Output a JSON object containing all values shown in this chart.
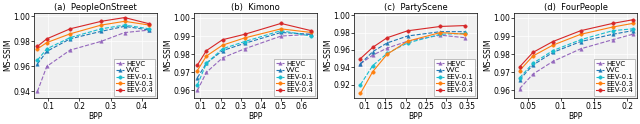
{
  "subplots": [
    {
      "title": "(a)  PeopleOnStreet",
      "xlabel": "BPP",
      "ylabel": "MS-SSIM",
      "xlim": [
        0.055,
        0.45
      ],
      "ylim": [
        0.935,
        1.003
      ],
      "yticks": [
        0.94,
        0.96,
        0.98,
        1.0
      ],
      "xticks": [
        0.1,
        0.2,
        0.3,
        0.4
      ],
      "series": [
        {
          "label": "HEVC",
          "color": "#9467bd",
          "linestyle": "--",
          "marker": "^",
          "mfc": "#9467bd",
          "x": [
            0.065,
            0.095,
            0.17,
            0.27,
            0.345,
            0.425
          ],
          "y": [
            0.94,
            0.96,
            0.973,
            0.98,
            0.987,
            0.989
          ]
        },
        {
          "label": "VVC",
          "color": "#1f77b4",
          "linestyle": "--",
          "marker": "^",
          "mfc": "#1f77b4",
          "x": [
            0.065,
            0.095,
            0.17,
            0.27,
            0.345,
            0.425
          ],
          "y": [
            0.962,
            0.972,
            0.982,
            0.988,
            0.992,
            0.989
          ]
        },
        {
          "label": "EEV-0.1",
          "color": "#17becf",
          "linestyle": "--",
          "marker": "o",
          "mfc": "#17becf",
          "x": [
            0.065,
            0.095,
            0.17,
            0.27,
            0.345,
            0.425
          ],
          "y": [
            0.965,
            0.974,
            0.983,
            0.99,
            0.993,
            0.99
          ]
        },
        {
          "label": "EEV-0.3",
          "color": "#ff7f0e",
          "linestyle": "-",
          "marker": "o",
          "mfc": "#ff7f0e",
          "x": [
            0.065,
            0.095,
            0.17,
            0.27,
            0.345,
            0.425
          ],
          "y": [
            0.974,
            0.979,
            0.986,
            0.993,
            0.996,
            0.993
          ]
        },
        {
          "label": "EEV-0.4",
          "color": "#d62728",
          "linestyle": "-",
          "marker": "o",
          "mfc": "#d62728",
          "x": [
            0.065,
            0.095,
            0.17,
            0.27,
            0.345,
            0.425
          ],
          "y": [
            0.976,
            0.982,
            0.99,
            0.996,
            0.999,
            0.994
          ]
        }
      ]
    },
    {
      "title": "(b)  Kimono",
      "xlabel": "BPP",
      "ylabel": "MS-SSIM",
      "xlim": [
        0.07,
        0.68
      ],
      "ylim": [
        0.956,
        1.003
      ],
      "yticks": [
        0.96,
        0.97,
        0.98,
        0.99,
        1.0
      ],
      "xticks": [
        0.1,
        0.2,
        0.3,
        0.4,
        0.5,
        0.6
      ],
      "series": [
        {
          "label": "HEVC",
          "color": "#9467bd",
          "linestyle": "--",
          "marker": "^",
          "mfc": "#9467bd",
          "x": [
            0.085,
            0.13,
            0.21,
            0.32,
            0.5,
            0.65
          ],
          "y": [
            0.96,
            0.97,
            0.978,
            0.983,
            0.99,
            0.991
          ]
        },
        {
          "label": "VVC",
          "color": "#1f77b4",
          "linestyle": "--",
          "marker": "^",
          "mfc": "#1f77b4",
          "x": [
            0.085,
            0.13,
            0.21,
            0.32,
            0.5,
            0.65
          ],
          "y": [
            0.967,
            0.975,
            0.982,
            0.986,
            0.992,
            0.991
          ]
        },
        {
          "label": "EEV-0.1",
          "color": "#17becf",
          "linestyle": "--",
          "marker": "o",
          "mfc": "#17becf",
          "x": [
            0.085,
            0.13,
            0.21,
            0.32,
            0.5,
            0.65
          ],
          "y": [
            0.963,
            0.975,
            0.983,
            0.987,
            0.993,
            0.99
          ]
        },
        {
          "label": "EEV-0.3",
          "color": "#ff7f0e",
          "linestyle": "-",
          "marker": "o",
          "mfc": "#ff7f0e",
          "x": [
            0.085,
            0.13,
            0.21,
            0.32,
            0.5,
            0.65
          ],
          "y": [
            0.971,
            0.979,
            0.985,
            0.989,
            0.994,
            0.992
          ]
        },
        {
          "label": "EEV-0.4",
          "color": "#d62728",
          "linestyle": "-",
          "marker": "o",
          "mfc": "#d62728",
          "x": [
            0.085,
            0.13,
            0.21,
            0.32,
            0.5,
            0.65
          ],
          "y": [
            0.974,
            0.982,
            0.988,
            0.991,
            0.997,
            0.993
          ]
        }
      ]
    },
    {
      "title": "(c)  PartyScene",
      "xlabel": "BPP",
      "ylabel": "MS-SSIM",
      "xlim": [
        0.075,
        0.375
      ],
      "ylim": [
        0.905,
        1.003
      ],
      "yticks": [
        0.92,
        0.94,
        0.96,
        0.98,
        1.0
      ],
      "xticks": [
        0.1,
        0.15,
        0.2,
        0.25,
        0.3,
        0.35
      ],
      "series": [
        {
          "label": "HEVC",
          "color": "#9467bd",
          "linestyle": "--",
          "marker": "^",
          "mfc": "#9467bd",
          "x": [
            0.09,
            0.12,
            0.155,
            0.205,
            0.285,
            0.345
          ],
          "y": [
            0.944,
            0.954,
            0.962,
            0.97,
            0.977,
            0.974
          ]
        },
        {
          "label": "VVC",
          "color": "#1f77b4",
          "linestyle": "--",
          "marker": "^",
          "mfc": "#1f77b4",
          "x": [
            0.09,
            0.12,
            0.155,
            0.205,
            0.285,
            0.345
          ],
          "y": [
            0.944,
            0.958,
            0.968,
            0.976,
            0.981,
            0.981
          ]
        },
        {
          "label": "EEV-0.1",
          "color": "#17becf",
          "linestyle": "--",
          "marker": "o",
          "mfc": "#17becf",
          "x": [
            0.09,
            0.12,
            0.155,
            0.205,
            0.285,
            0.345
          ],
          "y": [
            0.92,
            0.942,
            0.956,
            0.968,
            0.978,
            0.979
          ]
        },
        {
          "label": "EEV-0.3",
          "color": "#ff7f0e",
          "linestyle": "-",
          "marker": "o",
          "mfc": "#ff7f0e",
          "x": [
            0.09,
            0.12,
            0.155,
            0.205,
            0.285,
            0.345
          ],
          "y": [
            0.91,
            0.935,
            0.955,
            0.97,
            0.98,
            0.978
          ]
        },
        {
          "label": "EEV-0.4",
          "color": "#d62728",
          "linestyle": "-",
          "marker": "o",
          "mfc": "#d62728",
          "x": [
            0.09,
            0.12,
            0.155,
            0.205,
            0.285,
            0.345
          ],
          "y": [
            0.95,
            0.963,
            0.974,
            0.982,
            0.987,
            0.988
          ]
        }
      ]
    },
    {
      "title": "(d)  FourPeople",
      "xlabel": "BPP",
      "ylabel": "MS-SSIM",
      "xlim": [
        0.03,
        0.215
      ],
      "ylim": [
        0.956,
        1.003
      ],
      "yticks": [
        0.96,
        0.97,
        0.98,
        0.99,
        1.0
      ],
      "xticks": [
        0.05,
        0.1,
        0.15,
        0.2
      ],
      "series": [
        {
          "label": "HEVC",
          "color": "#9467bd",
          "linestyle": "--",
          "marker": "^",
          "mfc": "#9467bd",
          "x": [
            0.038,
            0.058,
            0.088,
            0.13,
            0.178,
            0.208
          ],
          "y": [
            0.961,
            0.969,
            0.976,
            0.983,
            0.988,
            0.991
          ]
        },
        {
          "label": "VVC",
          "color": "#1f77b4",
          "linestyle": "--",
          "marker": "^",
          "mfc": "#1f77b4",
          "x": [
            0.038,
            0.058,
            0.088,
            0.13,
            0.178,
            0.208
          ],
          "y": [
            0.966,
            0.974,
            0.981,
            0.987,
            0.991,
            0.993
          ]
        },
        {
          "label": "EEV-0.1",
          "color": "#17becf",
          "linestyle": "--",
          "marker": "o",
          "mfc": "#17becf",
          "x": [
            0.038,
            0.058,
            0.088,
            0.13,
            0.178,
            0.208
          ],
          "y": [
            0.967,
            0.975,
            0.982,
            0.988,
            0.993,
            0.994
          ]
        },
        {
          "label": "EEV-0.3",
          "color": "#ff7f0e",
          "linestyle": "-",
          "marker": "o",
          "mfc": "#ff7f0e",
          "x": [
            0.038,
            0.058,
            0.088,
            0.13,
            0.178,
            0.208
          ],
          "y": [
            0.971,
            0.979,
            0.985,
            0.991,
            0.995,
            0.997
          ]
        },
        {
          "label": "EEV-0.4",
          "color": "#d62728",
          "linestyle": "-",
          "marker": "o",
          "mfc": "#d62728",
          "x": [
            0.038,
            0.058,
            0.088,
            0.13,
            0.178,
            0.208
          ],
          "y": [
            0.973,
            0.981,
            0.987,
            0.993,
            0.997,
            0.999
          ]
        }
      ]
    }
  ],
  "bg_color": "#f0f0f0",
  "legend_fontsize": 5.0,
  "axis_fontsize": 5.5,
  "title_fontsize": 6.0,
  "linewidth": 0.8,
  "markersize": 2.5
}
